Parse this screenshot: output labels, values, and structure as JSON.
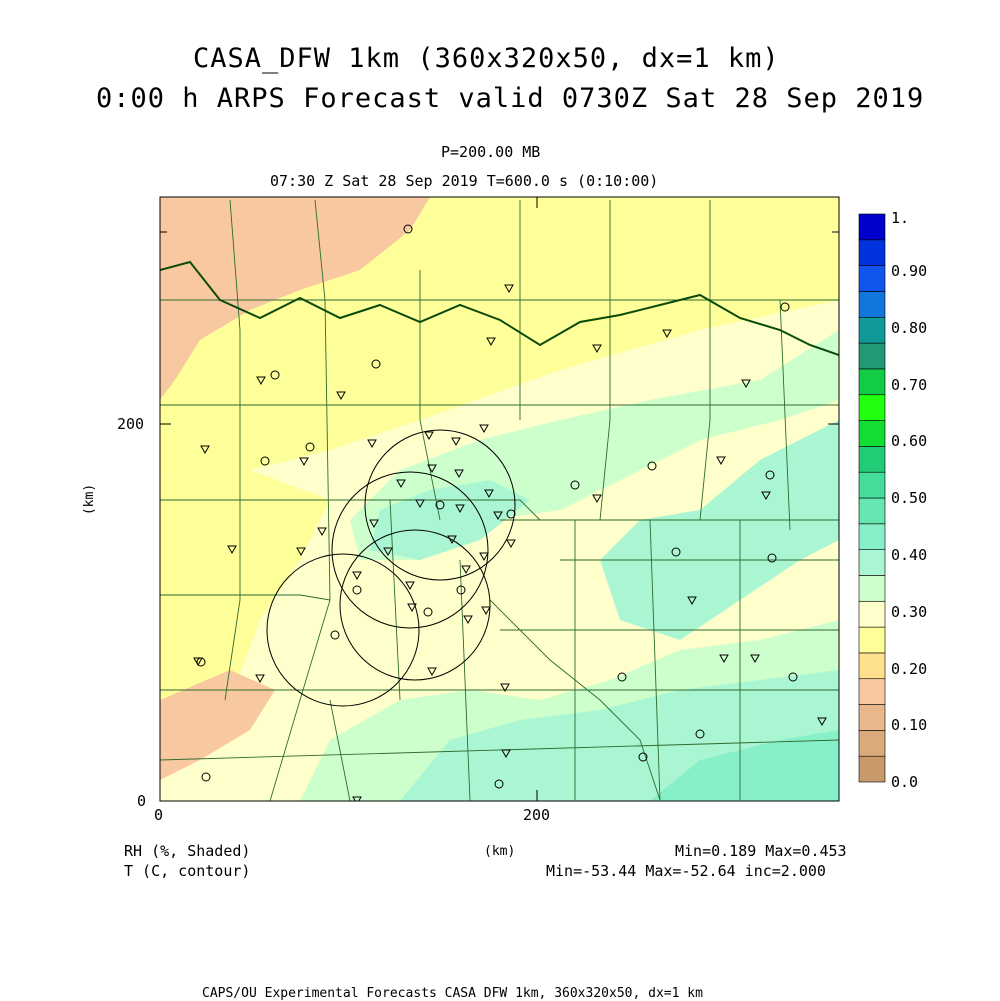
{
  "title": {
    "line1": "CASA_DFW 1km (360x320x50, dx=1 km)",
    "line2": "0:00 h ARPS Forecast valid 0730Z Sat 28 Sep 2019"
  },
  "subtitle": {
    "level": "P=200.00 MB",
    "time": "07:30 Z Sat 28 Sep 2019    T=600.0 s (0:10:00)"
  },
  "axes": {
    "x_ticks": [
      "0",
      "200"
    ],
    "y_ticks": [
      "0",
      "200"
    ],
    "x_unit": "(km)",
    "y_unit": "(km)"
  },
  "legend": {
    "shaded": "RH (%, Shaded)",
    "contour": "T (C, contour)",
    "shaded_stats": "Min=0.189  Max=0.453",
    "contour_stats": "Min=-53.44 Max=-52.64 inc=2.000"
  },
  "colorbar": {
    "labels": [
      "1.",
      "0.90",
      "0.80",
      "0.70",
      "0.60",
      "0.50",
      "0.40",
      "0.30",
      "0.20",
      "0.10",
      "0.0"
    ],
    "colors": [
      "#c8996a",
      "#d9aa7a",
      "#e8b88c",
      "#f8c9a0",
      "#ffe08c",
      "#ffff99",
      "#ffffcc",
      "#ccffcc",
      "#aaf5d2",
      "#88f0c8",
      "#66e6b0",
      "#44dd99",
      "#22cc77",
      "#11dd33",
      "#22ff11",
      "#11cc44",
      "#229977",
      "#119999",
      "#1177dd",
      "#1155ee",
      "#0033dd",
      "#0000cc"
    ]
  },
  "footer": "CAPS/OU Experimental Forecasts  CASA DFW 1km, 360x320x50, dx=1 km"
}
